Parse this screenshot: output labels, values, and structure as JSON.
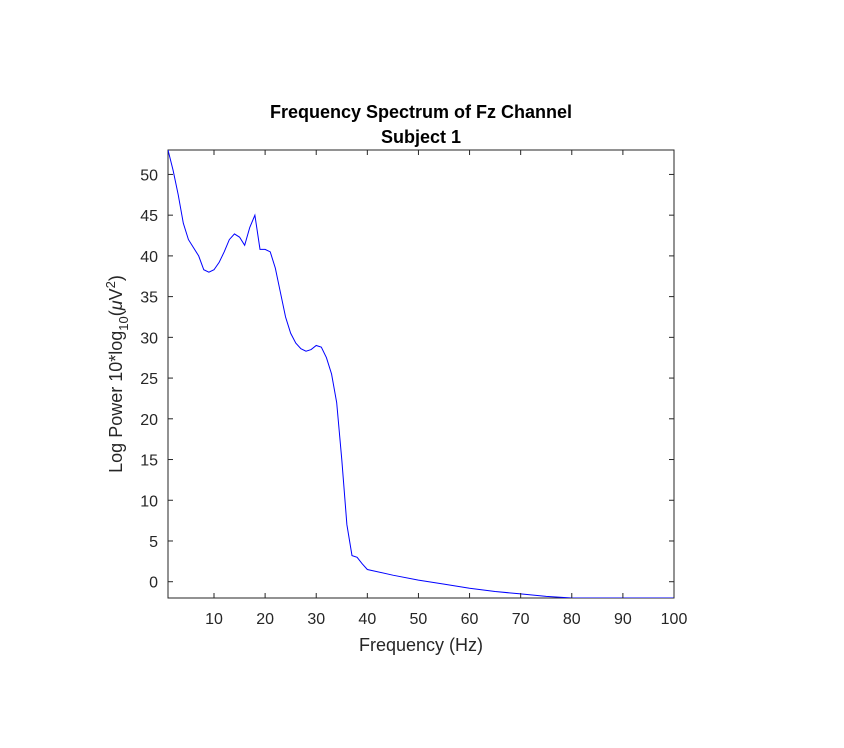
{
  "chart_data": {
    "type": "line",
    "title": [
      "Frequency Spectrum of Fz Channel",
      "Subject 1"
    ],
    "xlabel": "Frequency (Hz)",
    "ylabel": {
      "prefix": "Log Power 10*log",
      "sub": "10",
      "mid": "(",
      "mu": "μ",
      "unit": "V",
      "sup": "2",
      "suffix": ")"
    },
    "xlim": [
      1,
      100
    ],
    "ylim": [
      -2,
      53
    ],
    "xticks": [
      10,
      20,
      30,
      40,
      50,
      60,
      70,
      80,
      90,
      100
    ],
    "yticks": [
      0,
      5,
      10,
      15,
      20,
      25,
      30,
      35,
      40,
      45,
      50
    ],
    "grid": false,
    "series": [
      {
        "color": "#0000ff",
        "x": [
          1,
          2,
          3,
          4,
          5,
          6,
          7,
          8,
          9,
          10,
          11,
          12,
          13,
          14,
          15,
          16,
          17,
          18,
          19,
          20,
          21,
          22,
          23,
          24,
          25,
          26,
          27,
          28,
          29,
          30,
          31,
          32,
          33,
          34,
          35,
          36,
          37,
          38,
          39,
          40,
          45,
          50,
          55,
          60,
          65,
          70,
          75,
          80,
          85,
          90,
          95,
          100
        ],
        "y": [
          53,
          50.5,
          47.5,
          44,
          42,
          41,
          40,
          38.3,
          38,
          38.3,
          39.2,
          40.5,
          42,
          42.7,
          42.3,
          41.3,
          43.5,
          45,
          40.8,
          40.8,
          40.5,
          38.5,
          35.5,
          32.5,
          30.5,
          29.3,
          28.6,
          28.3,
          28.5,
          29,
          28.8,
          27.5,
          25.5,
          22,
          15,
          7,
          3.2,
          3,
          2.2,
          1.5,
          0.8,
          0.2,
          -0.3,
          -0.8,
          -1.2,
          -1.5,
          -1.8,
          -2,
          -2,
          -2,
          -2,
          -2
        ]
      }
    ]
  }
}
